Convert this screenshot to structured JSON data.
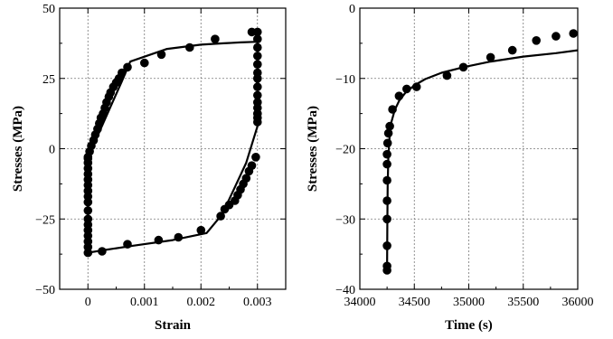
{
  "chart_data": [
    {
      "type": "scatter",
      "xlabel": "Strain",
      "ylabel": "Stresses (MPa)",
      "xlim": [
        -0.0005,
        0.0035
      ],
      "ylim": [
        -50,
        50
      ],
      "x_ticks": [
        0,
        0.001,
        0.002,
        0.003
      ],
      "x_tick_labels": [
        "0",
        "0.001",
        "0.002",
        "0.003"
      ],
      "y_ticks": [
        -50,
        -25,
        0,
        25,
        50
      ],
      "y_tick_labels": [
        "−50",
        "−25",
        "0",
        "25",
        "50"
      ],
      "grid": true,
      "line": {
        "x": [
          0,
          7e-05,
          0.0006,
          0.00075,
          0.0014,
          0.002,
          0.0024,
          0.0027,
          0.00295,
          0.003,
          0.003,
          0.0028,
          0.0025,
          0.00235,
          0.0021,
          0.0015,
          0.0008,
          0.0003,
          0.0,
          0.0,
          3e-05,
          6e-05
        ],
        "y": [
          -4,
          0,
          24,
          31,
          35.5,
          37,
          37.5,
          37.8,
          38,
          38,
          8,
          -5,
          -18,
          -24,
          -30,
          -32.5,
          -34.5,
          -36,
          -37,
          -5,
          -3,
          0
        ]
      },
      "points": {
        "x": [
          0,
          3e-05,
          6e-05,
          0.0001,
          0.00013,
          0.00017,
          0.0002,
          0.00023,
          0.00027,
          0.0003,
          0.00033,
          0.00037,
          0.0004,
          0.00045,
          0.0005,
          0.00055,
          0.0006,
          0.0007,
          0.001,
          0.0013,
          0.0018,
          0.00225,
          0.0029,
          0.003,
          0.003,
          0.003,
          0.003,
          0.003,
          0.003,
          0.003,
          0.003,
          0.003,
          0.003,
          0.003,
          0.003,
          0.003,
          0.003,
          0.00297,
          0.0029,
          0.00285,
          0.0028,
          0.00275,
          0.0027,
          0.00265,
          0.0026,
          0.0025,
          0.00242,
          0.00235,
          0.002,
          0.0016,
          0.00125,
          0.0007,
          0.00025,
          0,
          0,
          0,
          0,
          0,
          0,
          0,
          0,
          0,
          0,
          0,
          0,
          0,
          0,
          0,
          0,
          0
        ],
        "y": [
          -3,
          -1,
          1,
          3,
          5,
          7,
          9,
          11,
          12.5,
          14.5,
          16.5,
          18.5,
          20,
          22,
          23.5,
          25,
          27,
          29,
          30.5,
          33.5,
          36,
          39,
          41.5,
          41.5,
          39,
          36,
          33,
          30,
          27,
          25,
          22,
          19,
          16.5,
          14.5,
          12.5,
          11,
          9.5,
          -3,
          -6,
          -8,
          -10.5,
          -12.5,
          -14.5,
          -16.5,
          -18.5,
          -20,
          -21.5,
          -24,
          -29,
          -31.5,
          -32.5,
          -34,
          -36.5,
          -37,
          -35,
          -33,
          -31,
          -29,
          -27,
          -25,
          -22,
          -19,
          -17,
          -15,
          -13,
          -11,
          -9,
          -7,
          -5,
          -3.5
        ]
      }
    },
    {
      "type": "scatter",
      "xlabel": "Time (s)",
      "ylabel": "Stresses (MPa)",
      "xlim": [
        34000,
        36000
      ],
      "ylim": [
        -40,
        0
      ],
      "x_ticks": [
        34000,
        34500,
        35000,
        35500,
        36000
      ],
      "x_tick_labels": [
        "34000",
        "34500",
        "35000",
        "35500",
        "36000"
      ],
      "y_ticks": [
        -40,
        -30,
        -20,
        -10,
        0
      ],
      "y_tick_labels": [
        "−40",
        "−30",
        "−20",
        "−10",
        "0"
      ],
      "grid": true,
      "line": {
        "x": [
          34250,
          34252,
          34256,
          34262,
          34272,
          34290,
          34320,
          34360,
          34420,
          34500,
          34600,
          34750,
          34950,
          35200,
          35500,
          35800,
          36000
        ],
        "y": [
          -37.5,
          -31,
          -25,
          -21,
          -18.5,
          -16.2,
          -14.5,
          -13.2,
          -12,
          -11,
          -10.1,
          -9.2,
          -8.4,
          -7.6,
          -6.9,
          -6.4,
          -6
        ]
      },
      "points": {
        "x": [
          34250,
          34250,
          34250,
          34250,
          34250,
          34250,
          34250,
          34250,
          34255,
          34262,
          34275,
          34300,
          34360,
          34430,
          34520,
          34800,
          34950,
          35200,
          35400,
          35620,
          35800,
          35960
        ],
        "y": [
          -37.3,
          -36.7,
          -33.8,
          -30,
          -27.4,
          -24.5,
          -22.2,
          -20.8,
          -19.2,
          -17.8,
          -16.8,
          -14.4,
          -12.5,
          -11.5,
          -11.2,
          -9.6,
          -8.4,
          -7,
          -6,
          -4.6,
          -4,
          -3.6
        ]
      }
    }
  ]
}
